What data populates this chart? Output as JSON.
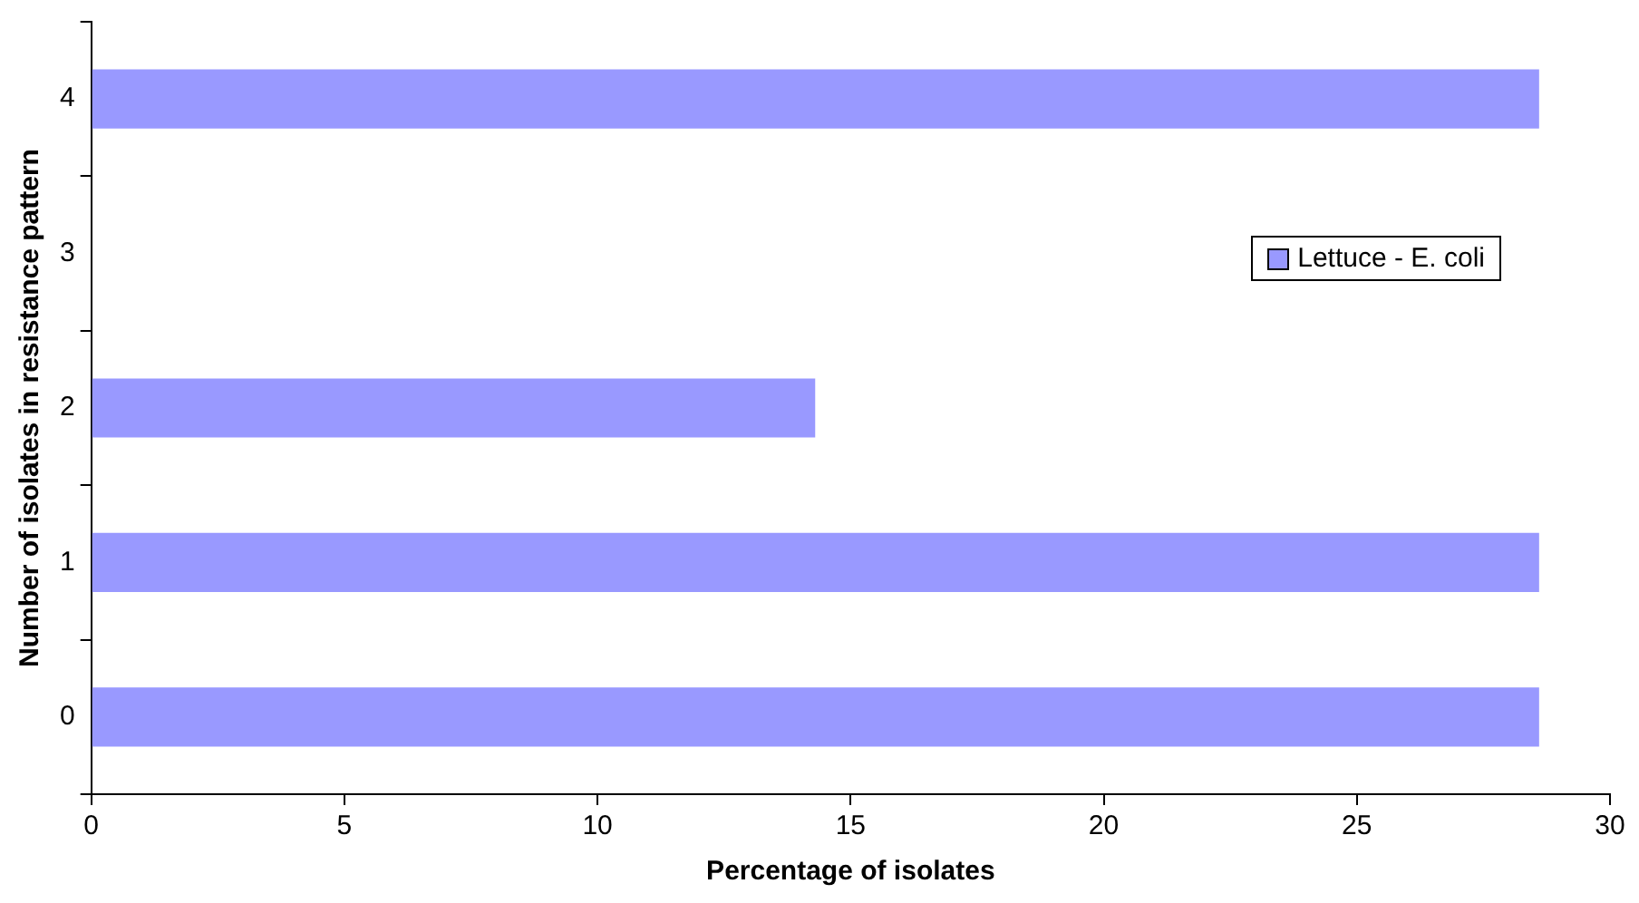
{
  "chart_data": {
    "type": "bar",
    "orientation": "horizontal",
    "xlabel": "Percentage of isolates",
    "ylabel": "Number of isolates in resistance pattern",
    "categories": [
      "4",
      "3",
      "2",
      "1",
      "0"
    ],
    "series": [
      {
        "name": "Lettuce - E. coli",
        "color": "#9999ff",
        "values": [
          28.6,
          0,
          14.3,
          28.6,
          28.6
        ]
      }
    ],
    "xlim": [
      0,
      30
    ],
    "xticks": [
      0,
      5,
      10,
      15,
      20,
      25,
      30
    ],
    "grid": false,
    "legend": "right"
  }
}
